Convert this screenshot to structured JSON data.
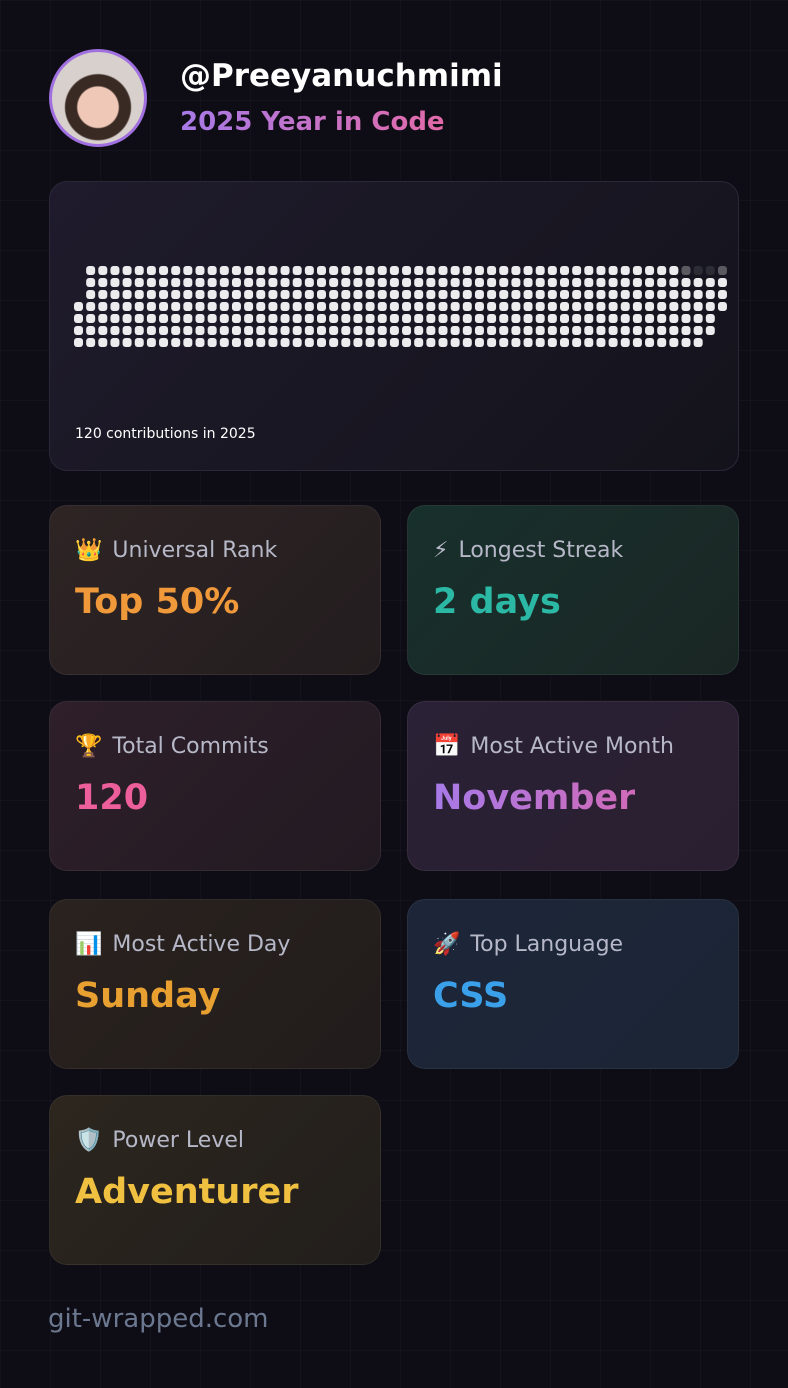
{
  "header": {
    "handle": "@Preeyanuchmimi",
    "subtitle": "2025 Year in Code"
  },
  "contributions": {
    "caption": "120 contributions in 2025"
  },
  "stats": [
    {
      "icon": "👑",
      "label": "Universal Rank",
      "value": "Top 50%"
    },
    {
      "icon": "⚡",
      "label": "Longest Streak",
      "value": "2 days"
    },
    {
      "icon": "🏆",
      "label": "Total Commits",
      "value": "120"
    },
    {
      "icon": "📅",
      "label": "Most Active Month",
      "value": "November"
    },
    {
      "icon": "📊",
      "label": "Most Active Day",
      "value": "Sunday"
    },
    {
      "icon": "🚀",
      "label": "Top Language",
      "value": "CSS"
    },
    {
      "icon": "🛡️",
      "label": "Power Level",
      "value": "Adventurer"
    }
  ],
  "footer": {
    "site": "git-wrapped.com"
  }
}
